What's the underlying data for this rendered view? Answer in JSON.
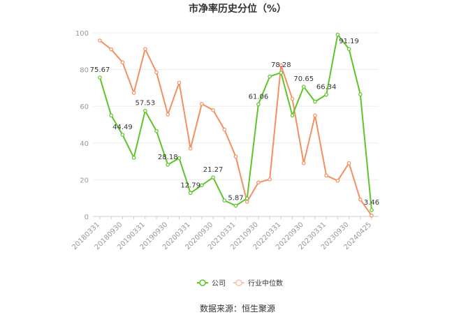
{
  "chart_data": {
    "type": "line",
    "title": "市净率历史分位（%）",
    "source_note": "数据来源：恒生聚源",
    "ylim": [
      0,
      100
    ],
    "y_ticks": [
      0,
      20,
      40,
      60,
      80,
      100
    ],
    "x": [
      "20180331",
      "",
      "20180930",
      "",
      "20190331",
      "",
      "20190930",
      "",
      "20200331",
      "",
      "20200930",
      "",
      "20210331",
      "",
      "20210930",
      "",
      "20220331",
      "",
      "20220930",
      "",
      "20230331",
      "",
      "20230930",
      "",
      "20240425"
    ],
    "x_tick_labels": [
      "20180331",
      "20180930",
      "20190331",
      "20190930",
      "20200331",
      "20200930",
      "20210331",
      "20210930",
      "20220331",
      "20220930",
      "20230331",
      "20230930",
      "20240425"
    ],
    "series": [
      {
        "name": "公司",
        "color": "#5ec42a",
        "values": [
          75.67,
          55.0,
          44.49,
          32.0,
          57.53,
          46.5,
          28.18,
          31.8,
          12.79,
          17.0,
          21.27,
          8.7,
          5.87,
          9.8,
          61.06,
          76.2,
          78.28,
          55.0,
          70.65,
          62.5,
          66.34,
          99.0,
          91.19,
          66.5,
          3.46
        ],
        "labels": {
          "0": "75.67",
          "2": "44.49",
          "4": "57.53",
          "6": "28.18",
          "8": "12.79",
          "10": "21.27",
          "12": "5.87",
          "14": "61.06",
          "16": "78.28",
          "18": "70.65",
          "20": "66.34",
          "22": "91.19",
          "24": "3.46"
        }
      },
      {
        "name": "行业中位数",
        "color": "#f58f5f",
        "values": [
          95.8,
          91.0,
          83.9,
          67.3,
          91.2,
          78.5,
          55.5,
          72.8,
          37.0,
          61.3,
          57.9,
          47.3,
          32.6,
          8.0,
          18.5,
          20.2,
          82.3,
          64.0,
          29.0,
          55.0,
          22.3,
          19.5,
          29.0,
          9.2,
          0.5
        ]
      }
    ],
    "grid": "horizontal",
    "legend_position": "bottom-center"
  }
}
